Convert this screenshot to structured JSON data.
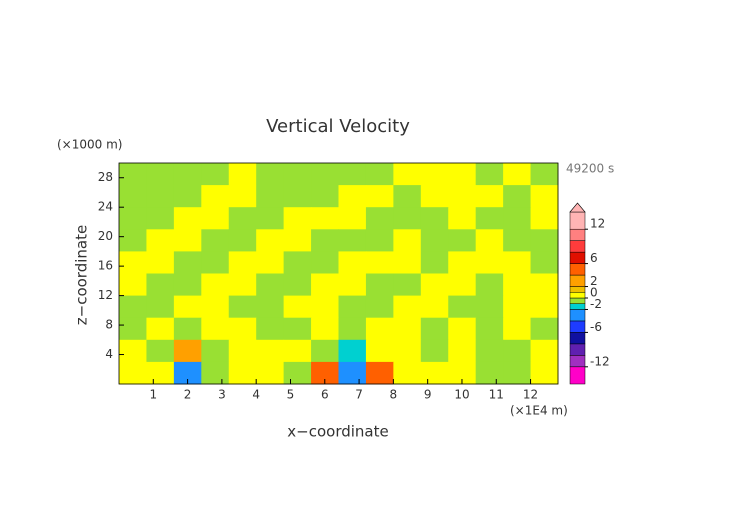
{
  "chart_data": {
    "type": "contour",
    "title": "Vertical Velocity",
    "time_label": "49200 s",
    "x_label": "x−coordinate",
    "x_unit": "(×1E4 m)",
    "y_label": "z−coordinate",
    "y_unit": "(×1000 m)",
    "xlim": [
      0,
      12.8
    ],
    "xticks": [
      1,
      2,
      3,
      4,
      5,
      6,
      7,
      8,
      9,
      10,
      11,
      12
    ],
    "ylim": [
      0,
      30
    ],
    "yticks": [
      4,
      8,
      12,
      16,
      20,
      24,
      28
    ],
    "x": [
      0.4,
      1.2,
      2.0,
      2.8,
      3.6,
      4.4,
      5.2,
      6.0,
      6.8,
      7.6,
      8.4,
      9.2,
      10.0,
      10.8,
      11.6,
      12.4
    ],
    "y": [
      28.5,
      25.5,
      22.5,
      19.5,
      16.5,
      13.5,
      10.5,
      7.5,
      4.5,
      1.5
    ],
    "z": [
      [
        -0.5,
        -0.5,
        -0.5,
        -0.5,
        0.5,
        -0.5,
        -0.5,
        -0.5,
        -0.5,
        -0.5,
        0.5,
        0.5,
        0.5,
        -0.5,
        0.5,
        -0.5
      ],
      [
        -0.5,
        -0.5,
        -0.5,
        0.5,
        0.5,
        -0.5,
        -0.5,
        -0.5,
        0.5,
        0.5,
        -0.5,
        0.5,
        0.5,
        0.5,
        -0.5,
        0.5
      ],
      [
        -0.5,
        -0.5,
        0.5,
        0.5,
        -0.5,
        -0.5,
        0.5,
        0.5,
        0.5,
        -0.5,
        -0.5,
        -0.5,
        0.5,
        -0.5,
        -0.5,
        0.5
      ],
      [
        -0.5,
        0.5,
        0.5,
        -0.5,
        -0.5,
        0.5,
        0.5,
        -0.5,
        -0.5,
        -0.5,
        0.5,
        -0.5,
        -0.5,
        0.5,
        -0.5,
        -0.5
      ],
      [
        0.5,
        0.5,
        -0.5,
        -0.5,
        0.5,
        0.5,
        -0.5,
        -0.5,
        0.5,
        0.5,
        0.5,
        -0.5,
        0.5,
        0.5,
        0.5,
        -0.5
      ],
      [
        0.5,
        -0.5,
        -0.5,
        0.5,
        0.5,
        -0.5,
        -0.5,
        0.5,
        0.5,
        -0.5,
        -0.5,
        0.5,
        0.5,
        -0.5,
        0.5,
        0.5
      ],
      [
        -0.5,
        -0.5,
        0.5,
        0.5,
        -0.5,
        -0.5,
        0.5,
        0.5,
        -0.5,
        -0.5,
        0.5,
        0.5,
        -0.5,
        -0.5,
        0.5,
        0.5
      ],
      [
        -0.5,
        0.5,
        -0.5,
        0.5,
        0.5,
        -0.5,
        -0.5,
        0.5,
        -0.5,
        0.5,
        0.5,
        -0.5,
        0.5,
        -0.5,
        0.5,
        -0.5
      ],
      [
        0.5,
        -0.5,
        3,
        -0.5,
        0.5,
        0.5,
        0.5,
        -0.5,
        -2,
        0.5,
        0.5,
        -0.5,
        0.5,
        -0.5,
        -0.5,
        0.5
      ],
      [
        0.5,
        0.5,
        -3,
        -0.5,
        0.5,
        0.5,
        -0.5,
        4,
        -4,
        5,
        0.5,
        0.5,
        0.5,
        -0.5,
        -0.5,
        0.5
      ]
    ],
    "levels": [
      -15,
      -12,
      -10,
      -8,
      -6,
      -4,
      -2,
      -1,
      0,
      1,
      2,
      4,
      6,
      8,
      10,
      12,
      15
    ],
    "colors": [
      "#ff00c8",
      "#a030c0",
      "#6020b0",
      "#1010a0",
      "#1e3cff",
      "#1e90ff",
      "#00d0d0",
      "#99e033",
      "#ffff00",
      "#f0c000",
      "#ffa000",
      "#ff6000",
      "#e01000",
      "#ff3c3c",
      "#ff8080",
      "#ffb4b4"
    ],
    "colorbar_ticks": [
      12,
      6,
      2,
      0,
      -2,
      -6,
      -12
    ]
  }
}
